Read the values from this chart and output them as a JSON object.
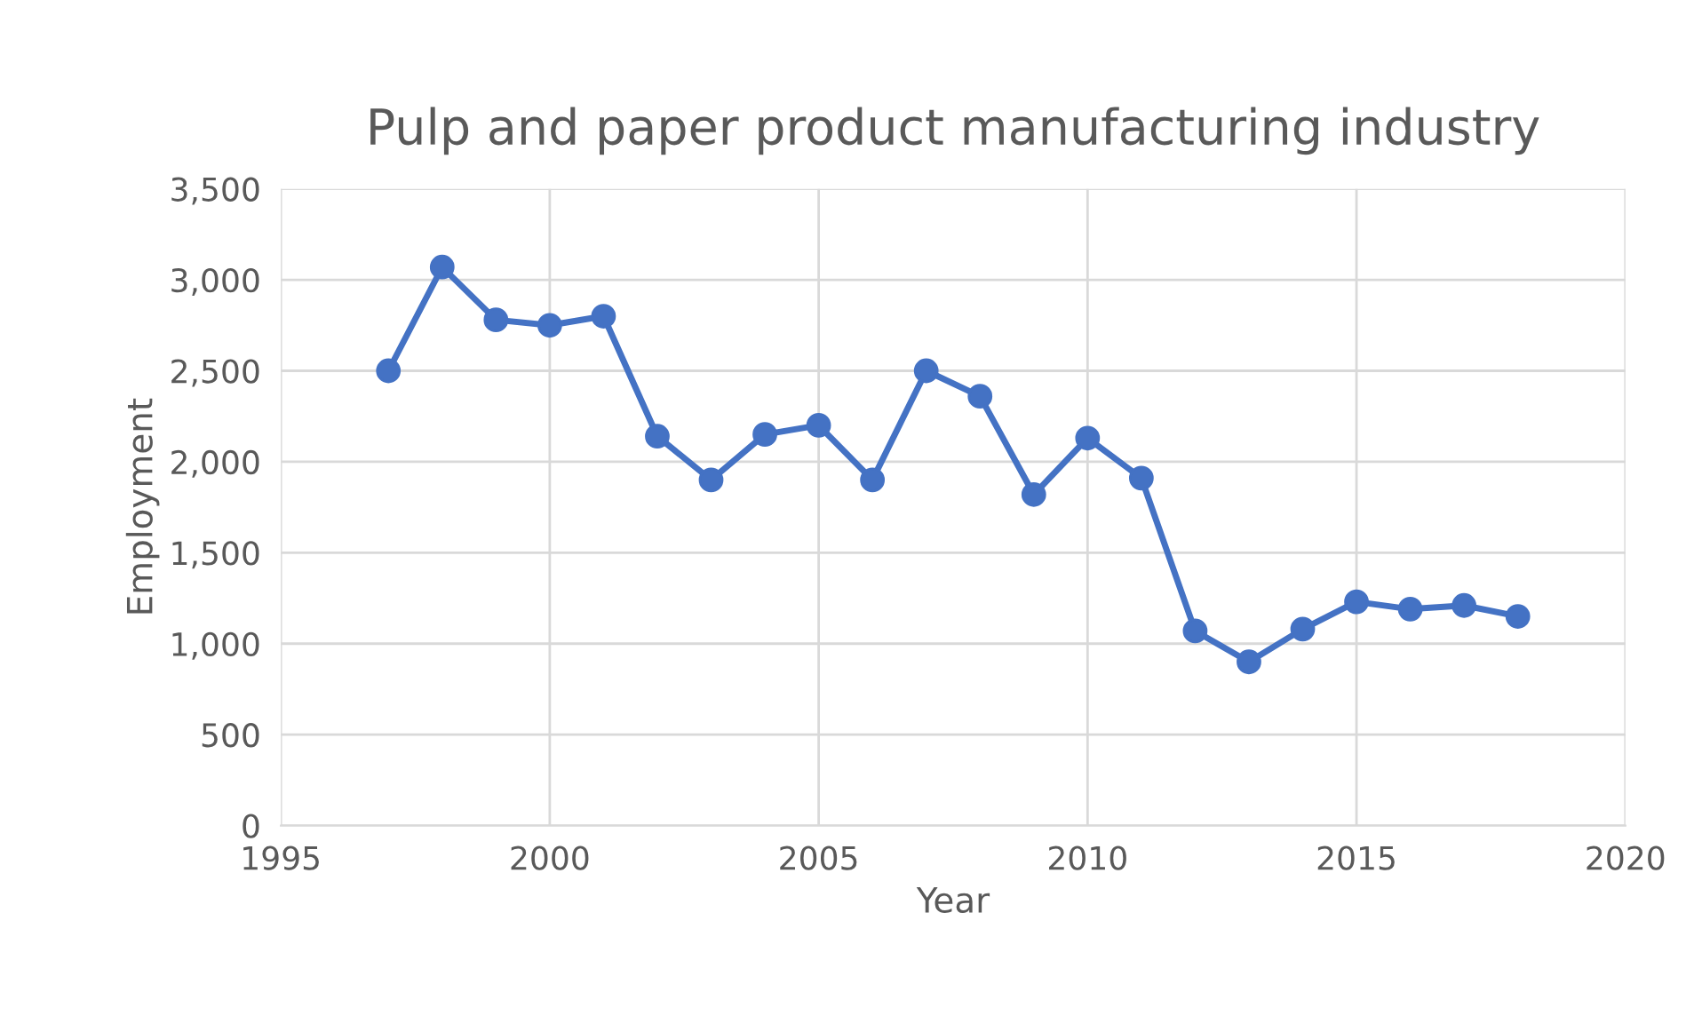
{
  "chart_data": {
    "type": "line",
    "title": "Pulp and paper product manufacturing industry",
    "xlabel": "Year",
    "ylabel": "Employment",
    "x": [
      1997,
      1998,
      1999,
      2000,
      2001,
      2002,
      2003,
      2004,
      2005,
      2006,
      2007,
      2008,
      2009,
      2010,
      2011,
      2012,
      2013,
      2014,
      2015,
      2016,
      2017,
      2018
    ],
    "series": [
      {
        "color": "#4472c4",
        "values": [
          2500,
          3070,
          2780,
          2750,
          2800,
          2140,
          1900,
          2150,
          2200,
          1900,
          2500,
          2360,
          1820,
          2130,
          1910,
          1070,
          900,
          1080,
          1230,
          1190,
          1210,
          1150
        ]
      }
    ],
    "xlim": [
      1995,
      2020
    ],
    "xticks": [
      1995,
      2000,
      2005,
      2010,
      2015,
      2020
    ],
    "ylim": [
      0,
      3500
    ],
    "yticks": [
      {
        "value": 0,
        "label": "0"
      },
      {
        "value": 500,
        "label": "500"
      },
      {
        "value": 1000,
        "label": "1,000"
      },
      {
        "value": 1500,
        "label": "1,500"
      },
      {
        "value": 2000,
        "label": "2,000"
      },
      {
        "value": 2500,
        "label": "2,500"
      },
      {
        "value": 3000,
        "label": "3,000"
      },
      {
        "value": 3500,
        "label": "3,500"
      }
    ],
    "grid": true,
    "marker": "circle",
    "line_style": "solid"
  }
}
